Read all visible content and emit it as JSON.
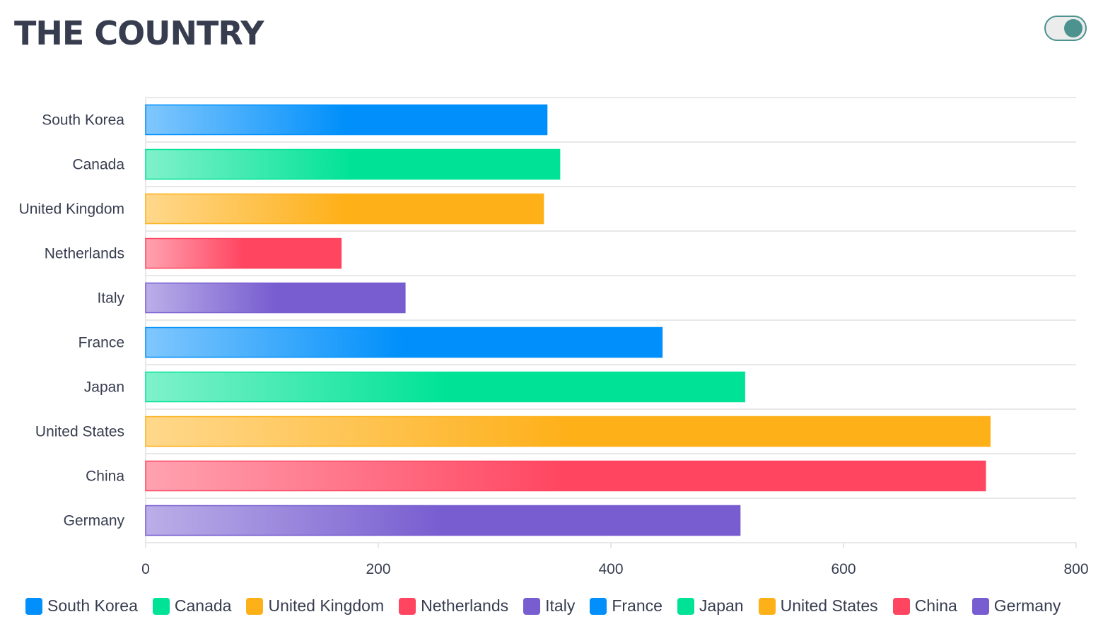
{
  "title": "THE COUNTRY",
  "toggle": {
    "state": "on",
    "color": "#4c938f"
  },
  "chart_data": {
    "type": "bar",
    "orientation": "horizontal",
    "categories": [
      "South Korea",
      "Canada",
      "United Kingdom",
      "Netherlands",
      "Italy",
      "France",
      "Japan",
      "United States",
      "China",
      "Germany"
    ],
    "values": [
      345,
      356,
      342,
      168,
      223,
      444,
      515,
      726,
      722,
      511
    ],
    "colors": [
      "#008ffb",
      "#00e396",
      "#feb019",
      "#ff4560",
      "#775dd0",
      "#008ffb",
      "#00e396",
      "#feb019",
      "#ff4560",
      "#775dd0"
    ],
    "xlim": [
      0,
      800
    ],
    "xticks": [
      0,
      200,
      400,
      600,
      800
    ],
    "xlabel": "",
    "ylabel": "",
    "grid": "horizontal",
    "legend_position": "bottom",
    "legend": [
      "South Korea",
      "Canada",
      "United Kingdom",
      "Netherlands",
      "Italy",
      "France",
      "Japan",
      "United States",
      "China",
      "Germany"
    ]
  }
}
